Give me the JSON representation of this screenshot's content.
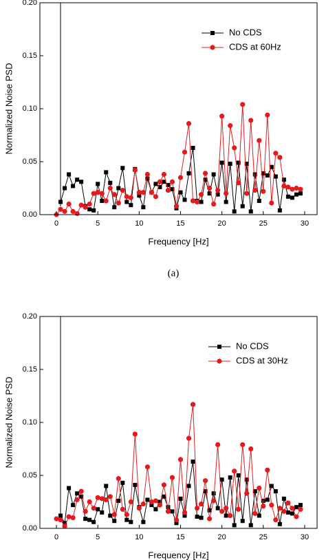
{
  "caption": "(a)",
  "chart_data": [
    {
      "type": "line",
      "xlabel": "Frequency [Hz]",
      "ylabel": "Normalized Noise PSD",
      "xlim": [
        -2,
        31.5
      ],
      "ylim": [
        0,
        0.2
      ],
      "xticks": [
        0,
        5,
        10,
        15,
        20,
        25,
        30
      ],
      "yticks": [
        {
          "value": 0,
          "label": "0.00"
        },
        {
          "value": 0.05,
          "label": "0.05"
        },
        {
          "value": 0.1,
          "label": "0.10"
        },
        {
          "value": 0.15,
          "label": "0.15"
        },
        {
          "value": 0.2,
          "label": "0.20"
        }
      ],
      "legend": "upper right",
      "x": [
        0,
        0.5,
        1,
        1.5,
        2,
        2.5,
        3,
        3.5,
        4,
        4.5,
        5,
        5.5,
        6,
        6.5,
        7,
        7.5,
        8,
        8.5,
        9,
        9.5,
        10,
        10.5,
        11,
        11.5,
        12,
        12.5,
        13,
        13.5,
        14,
        14.5,
        15,
        15.5,
        16,
        16.5,
        17,
        17.5,
        18,
        18.5,
        19,
        19.5,
        20,
        20.5,
        21,
        21.5,
        22,
        22.5,
        23,
        23.5,
        24,
        24.5,
        25,
        25.5,
        26,
        26.5,
        27,
        27.5,
        28,
        28.5,
        29,
        29.5
      ],
      "series": [
        {
          "name": "No CDS",
          "color": "#000000",
          "marker": "square",
          "values": [
            null,
            0.012,
            0.025,
            0.038,
            0.027,
            0.033,
            0.031,
            0.008,
            0.005,
            0.004,
            0.029,
            0.013,
            0.04,
            0.03,
            0.007,
            0.025,
            0.044,
            0.012,
            0.009,
            0.043,
            0.018,
            0.007,
            0.034,
            0.021,
            0.029,
            0.026,
            0.031,
            0.028,
            0.024,
            0.006,
            0.021,
            0.014,
            0.039,
            0.063,
            0.013,
            0.012,
            0.033,
            0.02,
            0.038,
            0.019,
            0.049,
            0.012,
            0.048,
            0.003,
            0.049,
            0.008,
            0.048,
            0.003,
            0.038,
            0.013,
            0.039,
            0.037,
            0.045,
            0.036,
            0.004,
            0.033,
            0.017,
            0.016,
            0.019,
            0.02
          ]
        },
        {
          "name": "CDS at 60Hz",
          "color": "#e8191c",
          "marker": "circle",
          "values": [
            0.0,
            0.005,
            0.003,
            0.01,
            0.003,
            0.001,
            0.009,
            0.007,
            0.01,
            0.02,
            0.021,
            0.02,
            0.013,
            0.025,
            0.019,
            0.011,
            0.023,
            0.017,
            0.016,
            0.042,
            0.021,
            0.021,
            0.038,
            0.021,
            0.017,
            0.031,
            0.038,
            0.023,
            0.031,
            0.008,
            0.035,
            0.059,
            0.086,
            0.013,
            0.012,
            0.019,
            0.039,
            0.025,
            0.01,
            0.023,
            0.093,
            0.02,
            0.084,
            0.063,
            0.03,
            0.104,
            0.02,
            0.089,
            0.023,
            0.07,
            0.022,
            0.094,
            0.011,
            0.058,
            0.054,
            0.027,
            0.026,
            0.024,
            0.025,
            0.024
          ]
        }
      ]
    },
    {
      "type": "line",
      "xlabel": "Frequency [Hz]",
      "ylabel": "Normalized Noise PSD",
      "xlim": [
        -2,
        31.5
      ],
      "ylim": [
        0,
        0.2
      ],
      "xticks": [
        0,
        5,
        10,
        15,
        20,
        25,
        30
      ],
      "yticks": [
        {
          "value": 0,
          "label": "0.00"
        },
        {
          "value": 0.05,
          "label": "0.05"
        },
        {
          "value": 0.1,
          "label": "0.10"
        },
        {
          "value": 0.15,
          "label": "0.15"
        },
        {
          "value": 0.2,
          "label": "0.20"
        }
      ],
      "legend": "upper right",
      "x": [
        0,
        0.5,
        1,
        1.5,
        2,
        2.5,
        3,
        3.5,
        4,
        4.5,
        5,
        5.5,
        6,
        6.5,
        7,
        7.5,
        8,
        8.5,
        9,
        9.5,
        10,
        10.5,
        11,
        11.5,
        12,
        12.5,
        13,
        13.5,
        14,
        14.5,
        15,
        15.5,
        16,
        16.5,
        17,
        17.5,
        18,
        18.5,
        19,
        19.5,
        20,
        20.5,
        21,
        21.5,
        22,
        22.5,
        23,
        23.5,
        24,
        24.5,
        25,
        25.5,
        26,
        26.5,
        27,
        27.5,
        28,
        28.5,
        29,
        29.5
      ],
      "series": [
        {
          "name": "No CDS",
          "color": "#000000",
          "marker": "square",
          "values": [
            null,
            0.012,
            0.005,
            0.038,
            0.022,
            0.033,
            0.03,
            0.009,
            0.008,
            0.006,
            0.018,
            0.015,
            0.04,
            0.012,
            0.007,
            0.026,
            0.043,
            0.008,
            0.006,
            0.041,
            0.02,
            0.006,
            0.027,
            0.022,
            0.018,
            0.025,
            0.03,
            0.02,
            0.016,
            0.005,
            0.028,
            0.012,
            0.04,
            0.063,
            0.011,
            0.01,
            0.035,
            0.017,
            0.033,
            0.019,
            0.046,
            0.012,
            0.048,
            0.003,
            0.05,
            0.007,
            0.046,
            0.003,
            0.035,
            0.012,
            0.026,
            0.027,
            0.04,
            0.035,
            0.004,
            0.028,
            0.015,
            0.014,
            0.02,
            0.022
          ]
        },
        {
          "name": "CDS at 30Hz",
          "color": "#e8191c",
          "marker": "circle",
          "values": [
            0.009,
            0.008,
            0.002,
            0.011,
            0.01,
            0.027,
            0.035,
            0.016,
            0.025,
            0.019,
            0.029,
            0.028,
            0.027,
            0.03,
            0.013,
            0.047,
            0.018,
            0.013,
            0.025,
            0.089,
            0.019,
            0.023,
            0.058,
            0.025,
            0.026,
            0.022,
            0.041,
            0.016,
            0.048,
            0.008,
            0.065,
            0.015,
            0.085,
            0.117,
            0.019,
            0.023,
            0.045,
            0.009,
            0.026,
            0.079,
            0.016,
            0.019,
            0.012,
            0.054,
            0.018,
            0.079,
            0.033,
            0.075,
            0.014,
            0.038,
            0.021,
            0.055,
            0.022,
            0.008,
            0.019,
            0.016,
            0.024,
            0.019,
            0.011,
            0.018
          ]
        }
      ]
    }
  ]
}
